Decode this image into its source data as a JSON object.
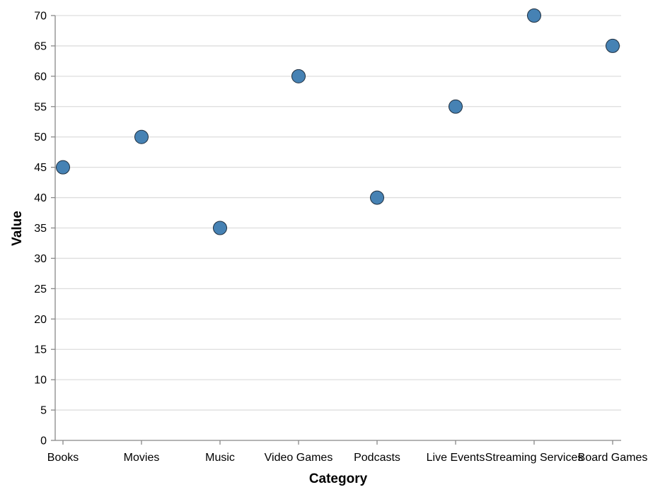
{
  "chart_data": {
    "type": "scatter",
    "categories": [
      "Books",
      "Movies",
      "Music",
      "Video Games",
      "Podcasts",
      "Live Events",
      "Streaming Services",
      "Board Games"
    ],
    "values": [
      45,
      50,
      35,
      60,
      40,
      55,
      70,
      65
    ],
    "xlabel": "Category",
    "ylabel": "Value",
    "ylim": [
      0,
      70
    ],
    "yticks": [
      0,
      5,
      10,
      15,
      20,
      25,
      30,
      35,
      40,
      45,
      50,
      55,
      60,
      65,
      70
    ],
    "grid": "horizontal",
    "colors": {
      "point": "#4682b4",
      "point_stroke": "#1f2f3f",
      "grid": "#dddddd",
      "axis": "#888888"
    }
  }
}
